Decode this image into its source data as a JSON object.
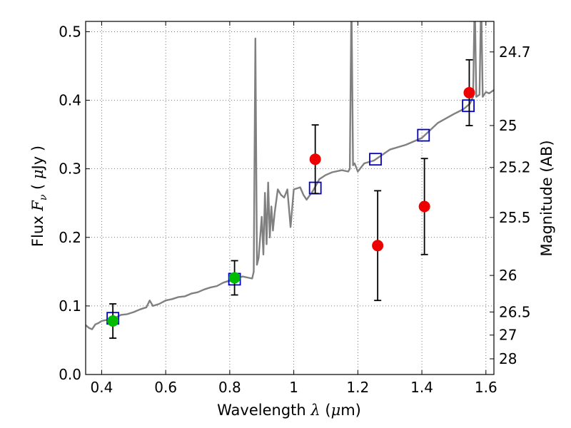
{
  "chart_data": {
    "type": "scatter",
    "title": "",
    "xlabel": "Wavelength λ (μm)",
    "xlabel_parts": {
      "pre": "Wavelength ",
      "sym": "λ",
      "unit_open": " (",
      "mu": "μ",
      "unit_rest": "m)"
    },
    "ylabel": "Flux F_ν (μJy)",
    "ylabel_parts": {
      "pre": "Flux ",
      "sym": "F",
      "sub": "ν",
      "open": " ( ",
      "mu": "μ",
      "rest": "Jy )"
    },
    "y2label": "Magnitude (AB)",
    "xlim": [
      0.35,
      1.625
    ],
    "ylim": [
      0.0,
      0.515
    ],
    "xticks": [
      0.4,
      0.6,
      0.8,
      1.0,
      1.2,
      1.4,
      1.6
    ],
    "xtick_labels": [
      "0.4",
      "0.6",
      "0.8",
      "1",
      "1.2",
      "1.4",
      "1.6"
    ],
    "yticks": [
      0.0,
      0.1,
      0.2,
      0.3,
      0.4,
      0.5
    ],
    "ytick_labels": [
      "0.0",
      "0.1",
      "0.2",
      "0.3",
      "0.4",
      "0.5"
    ],
    "y2ticks": [
      {
        "label": "24.7",
        "flux": 0.4705
      },
      {
        "label": "25",
        "flux": 0.3631
      },
      {
        "label": "25.2",
        "flux": 0.302
      },
      {
        "label": "25.5",
        "flux": 0.229
      },
      {
        "label": "26",
        "flux": 0.1445
      },
      {
        "label": "26.5",
        "flux": 0.0912
      },
      {
        "label": "27",
        "flux": 0.0575
      },
      {
        "label": "28",
        "flux": 0.0229
      }
    ],
    "grid": true,
    "colors": {
      "spectrum": "#808080",
      "model": "#0000cc",
      "red_points": "#ee0000",
      "green_points": "#00bb00",
      "errorbar": "#000000"
    },
    "series": [
      {
        "type": "line",
        "points": [
          [
            0.35,
            0.072
          ],
          [
            0.36,
            0.068
          ],
          [
            0.37,
            0.066
          ],
          [
            0.38,
            0.073
          ],
          [
            0.39,
            0.075
          ],
          [
            0.4,
            0.078
          ],
          [
            0.42,
            0.08
          ],
          [
            0.44,
            0.082
          ],
          [
            0.46,
            0.087
          ],
          [
            0.48,
            0.088
          ],
          [
            0.5,
            0.091
          ],
          [
            0.52,
            0.095
          ],
          [
            0.54,
            0.098
          ],
          [
            0.55,
            0.108
          ],
          [
            0.56,
            0.1
          ],
          [
            0.58,
            0.103
          ],
          [
            0.6,
            0.108
          ],
          [
            0.62,
            0.11
          ],
          [
            0.64,
            0.113
          ],
          [
            0.66,
            0.114
          ],
          [
            0.68,
            0.118
          ],
          [
            0.7,
            0.12
          ],
          [
            0.72,
            0.124
          ],
          [
            0.74,
            0.127
          ],
          [
            0.76,
            0.129
          ],
          [
            0.78,
            0.134
          ],
          [
            0.8,
            0.137
          ],
          [
            0.82,
            0.14
          ],
          [
            0.84,
            0.143
          ],
          [
            0.86,
            0.141
          ],
          [
            0.87,
            0.14
          ],
          [
            0.875,
            0.15
          ],
          [
            0.88,
            0.49
          ],
          [
            0.885,
            0.16
          ],
          [
            0.89,
            0.17
          ],
          [
            0.9,
            0.23
          ],
          [
            0.905,
            0.175
          ],
          [
            0.91,
            0.265
          ],
          [
            0.915,
            0.19
          ],
          [
            0.92,
            0.28
          ],
          [
            0.925,
            0.2
          ],
          [
            0.93,
            0.245
          ],
          [
            0.935,
            0.21
          ],
          [
            0.94,
            0.235
          ],
          [
            0.95,
            0.27
          ],
          [
            0.96,
            0.262
          ],
          [
            0.97,
            0.258
          ],
          [
            0.98,
            0.27
          ],
          [
            0.99,
            0.215
          ],
          [
            1.0,
            0.27
          ],
          [
            1.02,
            0.273
          ],
          [
            1.03,
            0.262
          ],
          [
            1.04,
            0.255
          ],
          [
            1.06,
            0.268
          ],
          [
            1.08,
            0.285
          ],
          [
            1.1,
            0.291
          ],
          [
            1.12,
            0.295
          ],
          [
            1.15,
            0.298
          ],
          [
            1.17,
            0.296
          ],
          [
            1.175,
            0.3
          ],
          [
            1.18,
            0.55
          ],
          [
            1.185,
            0.305
          ],
          [
            1.19,
            0.308
          ],
          [
            1.2,
            0.296
          ],
          [
            1.22,
            0.308
          ],
          [
            1.25,
            0.312
          ],
          [
            1.3,
            0.328
          ],
          [
            1.35,
            0.335
          ],
          [
            1.4,
            0.345
          ],
          [
            1.45,
            0.367
          ],
          [
            1.5,
            0.38
          ],
          [
            1.53,
            0.387
          ],
          [
            1.55,
            0.395
          ],
          [
            1.56,
            0.405
          ],
          [
            1.565,
            0.55
          ],
          [
            1.57,
            0.405
          ],
          [
            1.58,
            0.408
          ],
          [
            1.585,
            0.55
          ],
          [
            1.59,
            0.405
          ],
          [
            1.6,
            0.412
          ],
          [
            1.61,
            0.41
          ],
          [
            1.625,
            0.415
          ]
        ]
      },
      {
        "type": "scatter",
        "marker": "open-square",
        "points": [
          [
            0.435,
            0.082
          ],
          [
            0.815,
            0.139
          ],
          [
            1.067,
            0.272
          ],
          [
            1.255,
            0.314
          ],
          [
            1.405,
            0.349
          ],
          [
            1.545,
            0.392
          ]
        ]
      },
      {
        "type": "errorbar",
        "marker": "filled-circle-red",
        "points": [
          {
            "x": 1.067,
            "y": 0.314,
            "err": 0.05
          },
          {
            "x": 1.262,
            "y": 0.188,
            "err": 0.08
          },
          {
            "x": 1.408,
            "y": 0.245,
            "err": 0.07
          },
          {
            "x": 1.548,
            "y": 0.411,
            "err": 0.048
          }
        ]
      },
      {
        "type": "errorbar",
        "marker": "filled-circle-green",
        "points": [
          {
            "x": 0.435,
            "y": 0.078,
            "err": 0.025
          },
          {
            "x": 0.815,
            "y": 0.141,
            "err": 0.025
          }
        ]
      }
    ]
  }
}
